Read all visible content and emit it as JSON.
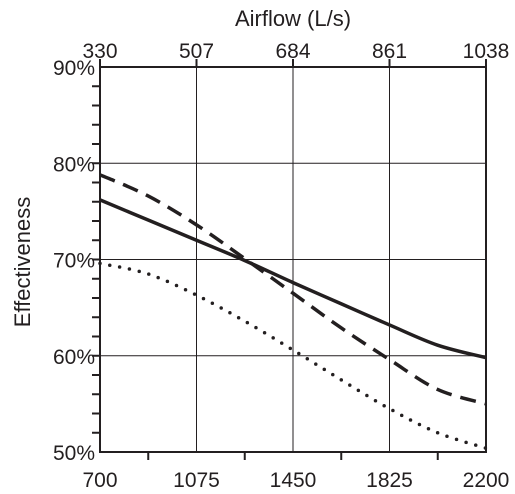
{
  "chart_data": {
    "type": "line",
    "title": "",
    "xlabel": "",
    "ylabel": "Effectiveness",
    "x2label": "Airflow (L/s)",
    "xlim": [
      700,
      2200
    ],
    "ylim": [
      50,
      90
    ],
    "x_ticks": [
      700,
      1075,
      1450,
      1825,
      2200
    ],
    "x_tick_labels": [
      "700",
      "1075",
      "1450",
      "1825",
      "2200"
    ],
    "x2_tick_labels": [
      "330",
      "507",
      "684",
      "861",
      "1038"
    ],
    "y_ticks": [
      50,
      60,
      70,
      80,
      90
    ],
    "y_tick_labels": [
      "50%",
      "60%",
      "70%",
      "80%",
      "90%"
    ],
    "grid": true,
    "legend": "none",
    "series": [
      {
        "style": "solid",
        "x": [
          700,
          887,
          1075,
          1262,
          1450,
          1637,
          1825,
          2012,
          2200
        ],
        "y": [
          76.2,
          74.1,
          72.0,
          69.9,
          67.6,
          65.4,
          63.2,
          61.1,
          59.8
        ]
      },
      {
        "style": "dashed",
        "x": [
          700,
          887,
          1075,
          1262,
          1450,
          1637,
          1825,
          2012,
          2200
        ],
        "y": [
          78.8,
          76.6,
          73.6,
          70.1,
          66.5,
          62.9,
          59.6,
          56.5,
          55.0
        ]
      },
      {
        "style": "dotted",
        "x": [
          700,
          887,
          1075,
          1262,
          1450,
          1637,
          1825,
          2012,
          2200
        ],
        "y": [
          69.6,
          68.5,
          66.3,
          63.6,
          60.6,
          57.5,
          54.5,
          52.0,
          50.4
        ]
      }
    ]
  }
}
